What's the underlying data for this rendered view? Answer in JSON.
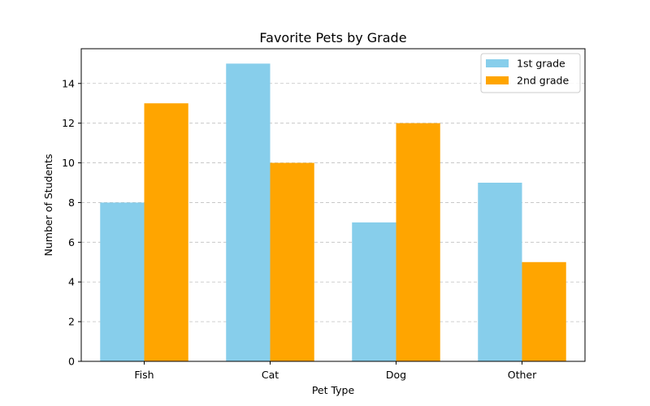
{
  "chart_data": {
    "type": "bar",
    "title": "Favorite Pets by Grade",
    "xlabel": "Pet Type",
    "ylabel": "Number of Students",
    "categories": [
      "Fish",
      "Cat",
      "Dog",
      "Other"
    ],
    "series": [
      {
        "name": "1st grade",
        "values": [
          8,
          15,
          7,
          9
        ],
        "color": "#87CEEB"
      },
      {
        "name": "2nd grade",
        "values": [
          13,
          10,
          12,
          5
        ],
        "color": "#FFA500"
      }
    ],
    "ylim": [
      0,
      15.75
    ],
    "yticks": [
      0,
      2,
      4,
      6,
      8,
      10,
      12,
      14
    ],
    "grid": "y-dashed",
    "legend_position": "top-right"
  }
}
